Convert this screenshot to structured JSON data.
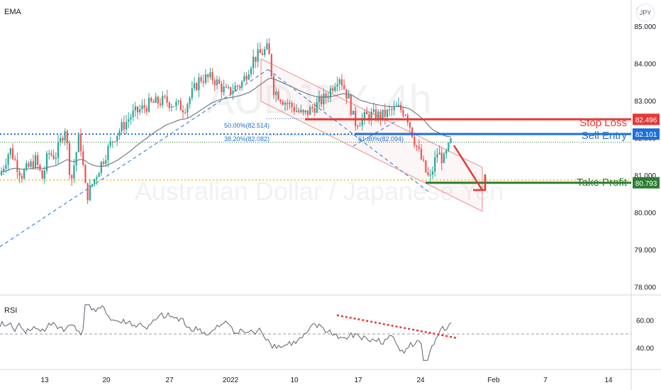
{
  "indicator_label": "EMA",
  "rsi_label": "RSI",
  "symbol_button": "JPY",
  "colors": {
    "up": "#26a69a",
    "down": "#ef5350",
    "stop": "#e53935",
    "entry": "#1e6fd6",
    "profit": "#2e7d32",
    "ema": "#787b86",
    "rsi": "#5d606b",
    "channel": "#f4cbcb",
    "fib": "#1e6fd6"
  },
  "chart_data": [
    {
      "type": "candlestick",
      "watermark": [
        "AUDJPY, 4h",
        "Australian Dollar / Japanese Yen"
      ],
      "y_ticks": [
        "85.000",
        "84.000",
        "83.000",
        "82.000",
        "81.000",
        "80.000",
        "79.000",
        "78.000"
      ],
      "ylim": [
        77.8,
        85.7
      ],
      "x_ticks": [
        "13",
        "20",
        "27",
        "2022",
        "10",
        "17",
        "24",
        "Feb",
        "7",
        "14"
      ],
      "fib_levels": [
        {
          "label": "50.00%(82.514)",
          "value": 82.514
        },
        {
          "label": "38.20%(82.082)",
          "value": 82.082
        },
        {
          "label": "61.80%(82.094)",
          "value": 82.094
        }
      ],
      "levels": [
        {
          "name": "Stop Loss",
          "value": 82.496,
          "price_label": "82.496"
        },
        {
          "name": "Sell Entry",
          "value": 82.101,
          "price_label": "82.101"
        },
        {
          "name": "Take Profit",
          "value": 80.793,
          "price_label": "80.793"
        }
      ],
      "reference_lines": [
        82.1,
        81.88,
        80.87
      ],
      "candles_summary": {
        "start": 81.0,
        "low_dec": 80.3,
        "peak_jan5": 84.4,
        "low_jan24": 80.8,
        "last": 82.0
      }
    },
    {
      "type": "line",
      "title": "RSI",
      "y_ticks": [
        "60.00",
        "40.00"
      ],
      "ylim": [
        25,
        77
      ],
      "midline": 50
    }
  ]
}
